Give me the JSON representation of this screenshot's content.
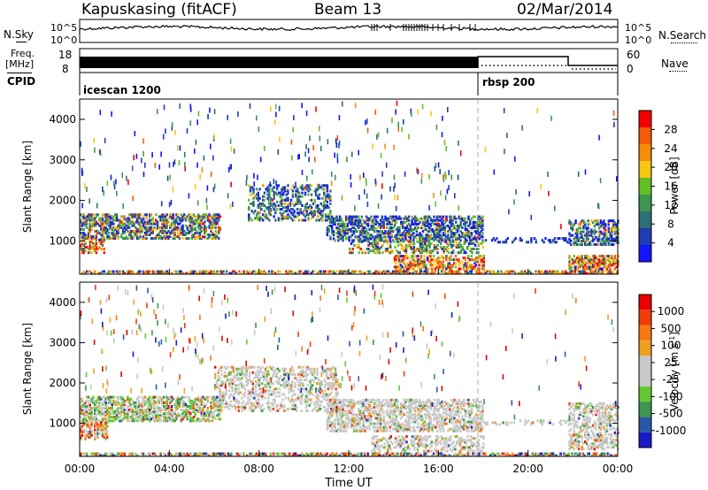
{
  "header": {
    "site": "Kapuskasing (fitACF)",
    "beam": "Beam 13",
    "date": "02/Mar/2014"
  },
  "top_panels": {
    "nsky_label": "N.Sky",
    "nsearch_label": "N.Search",
    "nsky_ticks": [
      "10^5",
      "10^0"
    ],
    "nsearch_ticks": [
      "10^5",
      "10^0"
    ],
    "freq_label": "Freq.",
    "freq_unit": "[MHz]",
    "freq_ticks": [
      "18",
      "8"
    ],
    "nave_label": "Nave",
    "nave_ticks": [
      "60",
      "0"
    ],
    "cpid_label": "CPID",
    "cpid_modes": [
      {
        "name": "icescan 1200",
        "start_hour": 0
      },
      {
        "name": "rbsp 200",
        "start_hour": 18
      }
    ]
  },
  "power_colorbar": {
    "label": "Power [dB]",
    "ticks": [
      "28",
      "24",
      "20",
      "16",
      "12",
      "8",
      "4"
    ],
    "colors": [
      "#1414ff",
      "#1e3cb4",
      "#2e6e78",
      "#3c9650",
      "#64be28",
      "#f5c814",
      "#f58c0a",
      "#f55a0a",
      "#f50000"
    ]
  },
  "velocity_colorbar": {
    "label": "Velocity",
    "unit": "[m s",
    "unit_sup": "-1",
    "unit_tail": "]",
    "ticks": [
      "1000",
      "500",
      "100",
      "25",
      "-25",
      "-100",
      "-500",
      "-1000"
    ],
    "colors": [
      "#1a1ac8",
      "#2a58a8",
      "#3c9650",
      "#64c832",
      "#c8c8c8",
      "#c8c8c8",
      "#f0a020",
      "#f57814",
      "#f03c0a",
      "#e60000"
    ]
  },
  "chart_data": [
    {
      "type": "heatmap",
      "name": "power",
      "ylabel": "Slant Range [km]",
      "ylim": [
        180,
        4500
      ],
      "xlim": [
        0,
        24
      ],
      "y_ticks": [
        1000,
        2000,
        3000,
        4000
      ],
      "mode_change_hour": 18
    },
    {
      "type": "heatmap",
      "name": "velocity",
      "ylabel": "Slant Range [km]",
      "xlabel": "Time UT",
      "ylim": [
        180,
        4500
      ],
      "xlim": [
        0,
        24
      ],
      "y_ticks": [
        1000,
        2000,
        3000,
        4000
      ],
      "x_ticks": [
        "00:00",
        "04:00",
        "08:00",
        "12:00",
        "16:00",
        "20:00",
        "00:00"
      ],
      "mode_change_hour": 18
    }
  ]
}
